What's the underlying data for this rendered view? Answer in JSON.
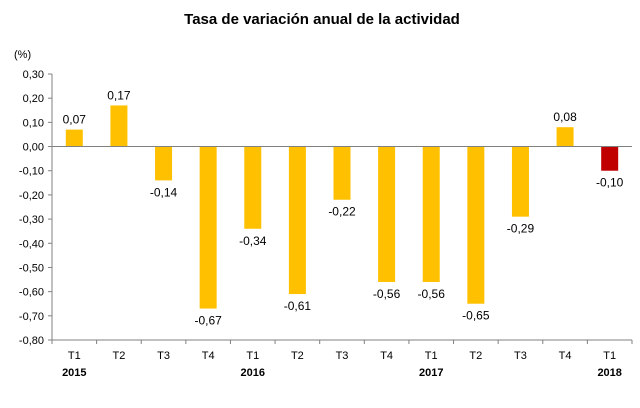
{
  "chart_data": {
    "type": "bar",
    "title": "Tasa de variación anual de la actividad",
    "ylabel": "(%)",
    "xlabel": "",
    "ylim": [
      -0.8,
      0.3
    ],
    "ytick_step": 0.1,
    "grid": false,
    "legend": "none",
    "categories": [
      "T1",
      "T2",
      "T3",
      "T4",
      "T1",
      "T2",
      "T3",
      "T4",
      "T1",
      "T2",
      "T3",
      "T4",
      "T1"
    ],
    "year_labels": [
      "2015",
      "",
      "",
      "",
      "2016",
      "",
      "",
      "",
      "2017",
      "",
      "",
      "",
      "2018"
    ],
    "values": [
      0.07,
      0.17,
      -0.14,
      -0.67,
      -0.34,
      -0.61,
      -0.22,
      -0.56,
      -0.56,
      -0.65,
      -0.29,
      0.08,
      -0.1
    ],
    "value_labels": [
      "0,07",
      "0,17",
      "-0,14",
      "-0,67",
      "-0,34",
      "-0,61",
      "-0,22",
      "-0,56",
      "-0,56",
      "-0,65",
      "-0,29",
      "0,08",
      "-0,10"
    ],
    "colors": {
      "default": "#FFC000",
      "highlight": "#C00000",
      "axis": "#808080"
    },
    "highlight_index": 12
  }
}
